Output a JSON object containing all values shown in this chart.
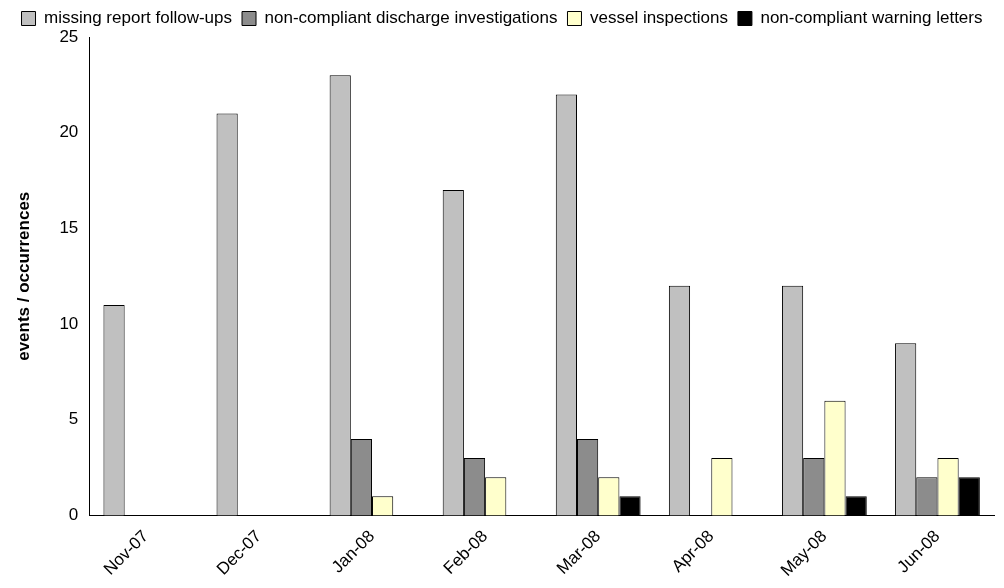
{
  "chart_data": {
    "type": "bar",
    "ylabel": "events / occurrences",
    "categories": [
      "Nov-07",
      "Dec-07",
      "Jan-08",
      "Feb-08",
      "Mar-08",
      "Apr-08",
      "May-08",
      "Jun-08"
    ],
    "series": [
      {
        "name": "missing report follow-ups",
        "color": "#c0c0c0",
        "values": [
          11,
          21,
          23,
          17,
          22,
          12,
          12,
          9
        ]
      },
      {
        "name": "non-compliant discharge investigations",
        "color": "#8c8c8c",
        "values": [
          0,
          0,
          4,
          3,
          4,
          0,
          3,
          2
        ]
      },
      {
        "name": "vessel inspections",
        "color": "#ffffcc",
        "values": [
          0,
          0,
          1,
          2,
          2,
          3,
          6,
          3
        ]
      },
      {
        "name": "non-compliant warning letters",
        "color": "#000000",
        "values": [
          0,
          0,
          0,
          0,
          1,
          0,
          1,
          2
        ]
      }
    ],
    "ylim": [
      0,
      25
    ],
    "yticks": [
      0,
      5,
      10,
      15,
      20,
      25
    ],
    "grid": false,
    "legend": "top"
  }
}
